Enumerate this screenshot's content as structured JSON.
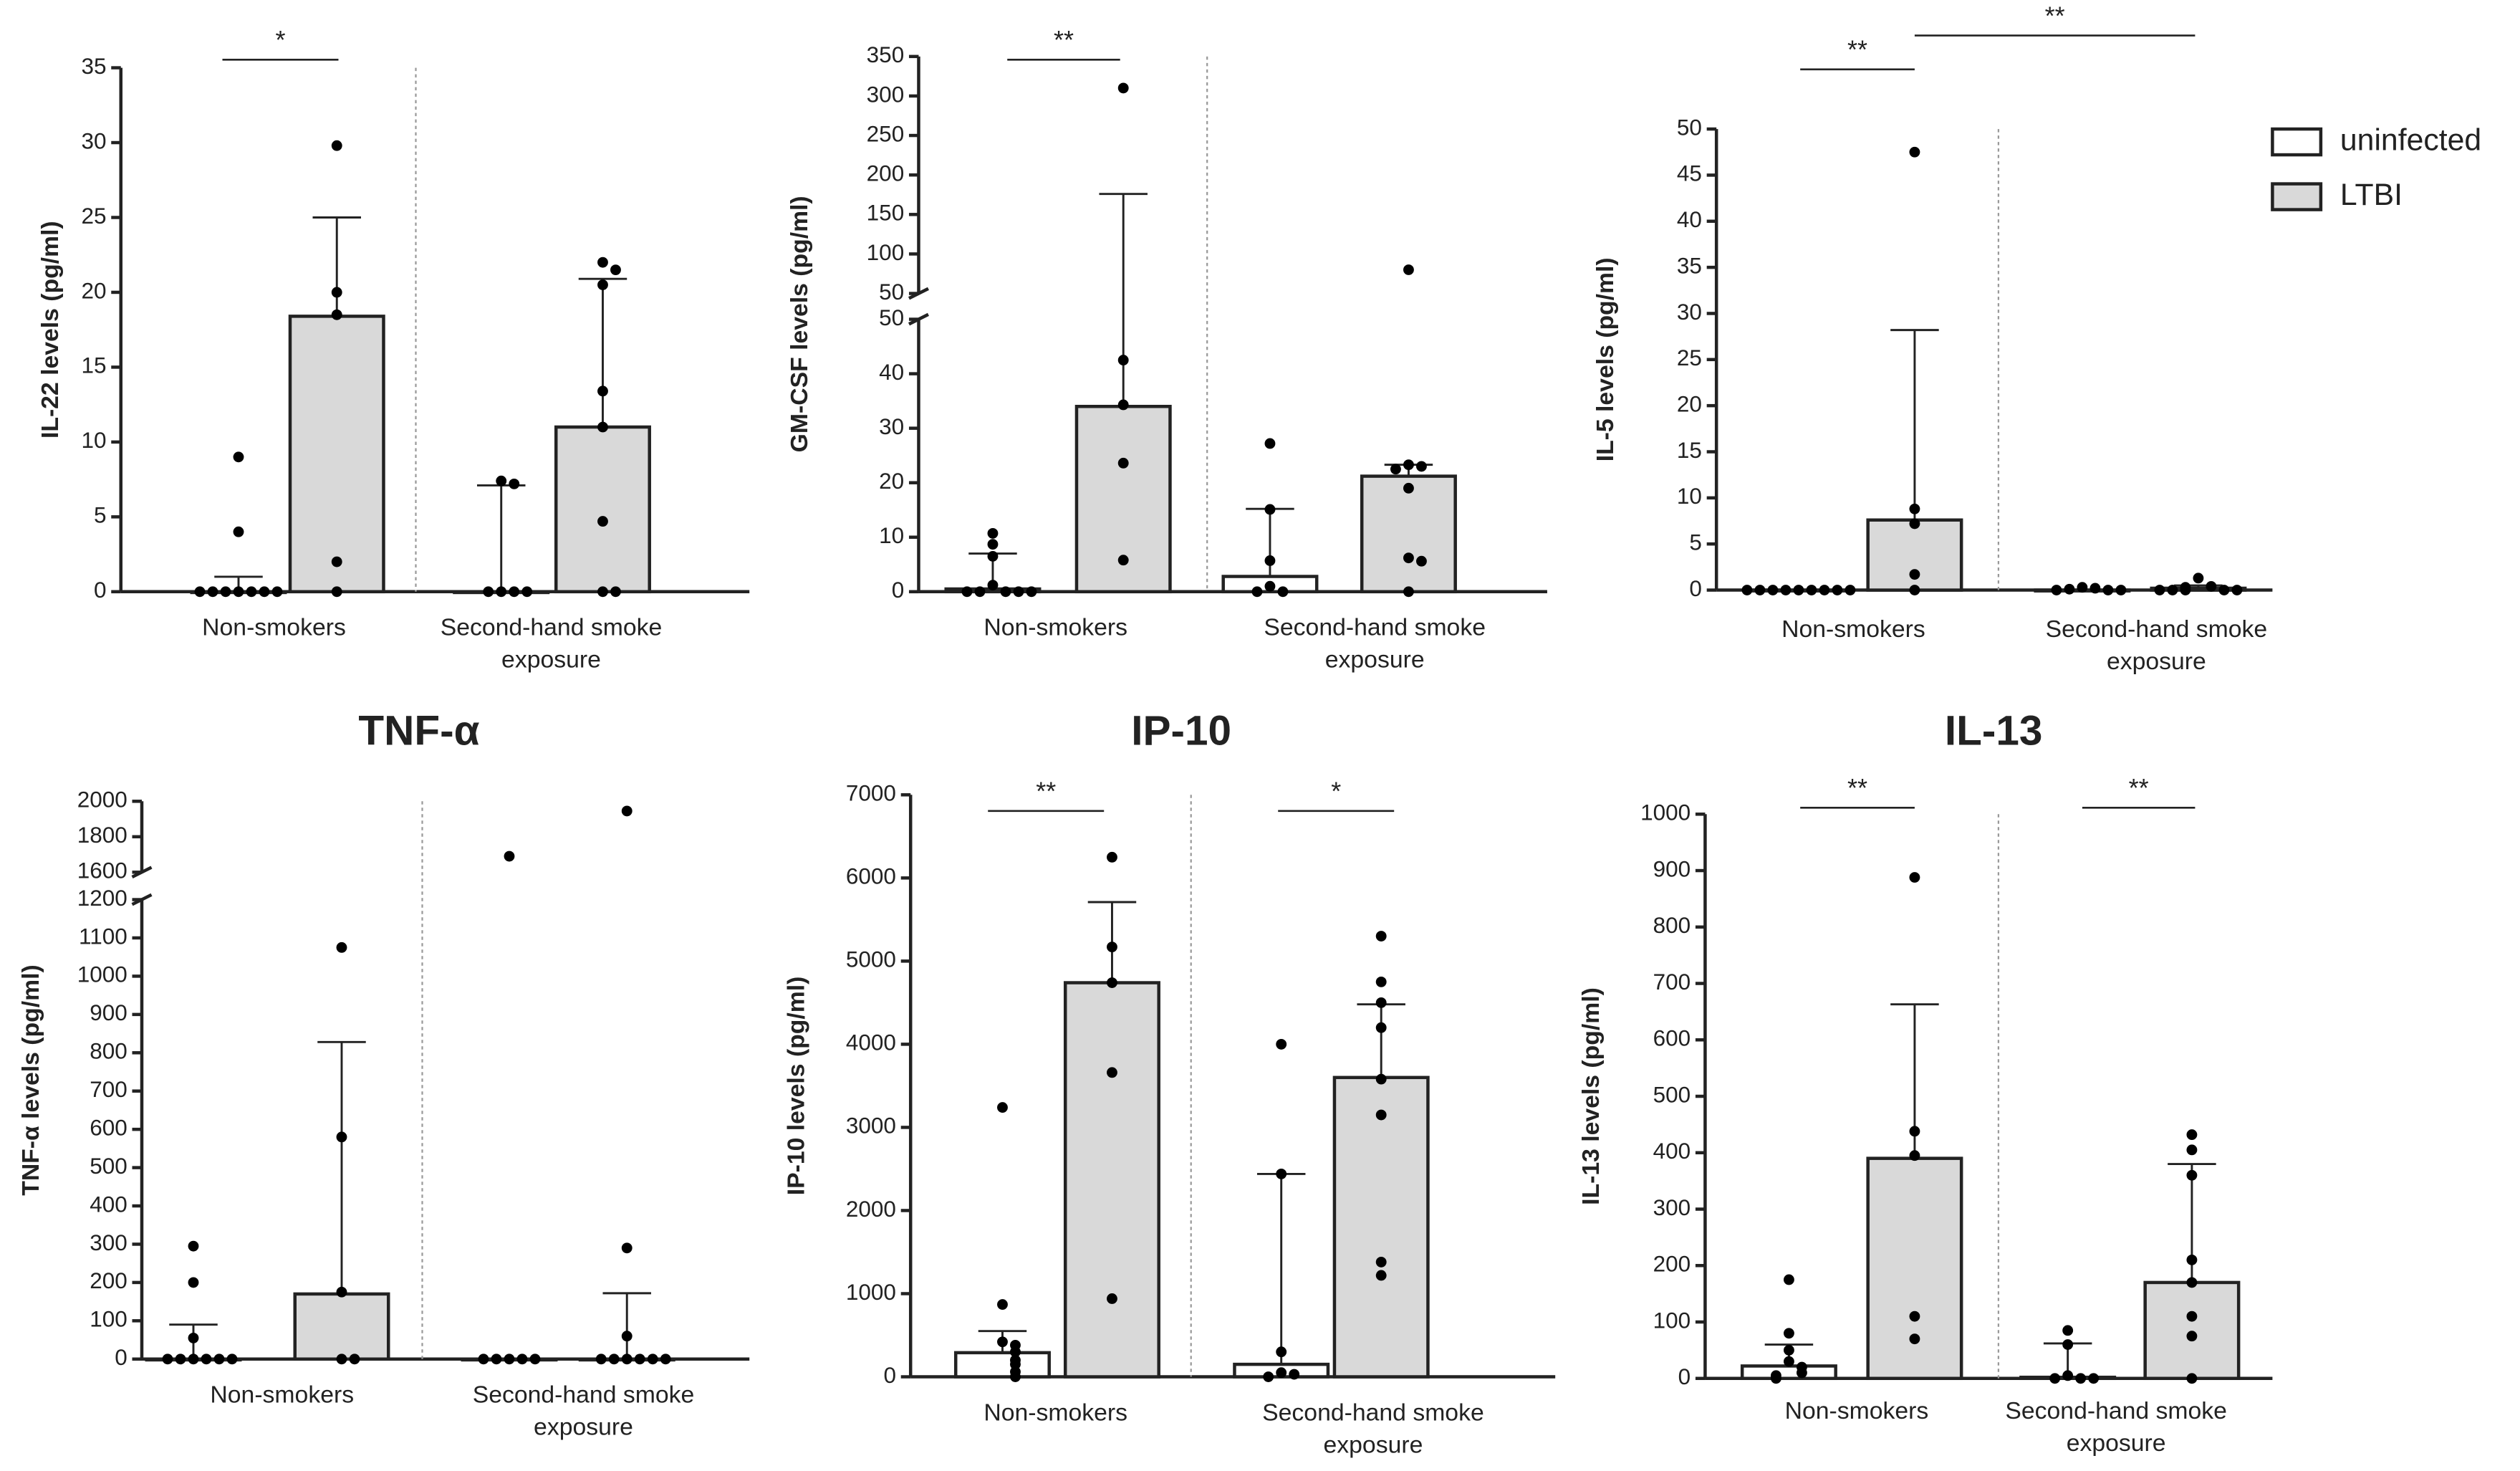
{
  "legend": [
    {
      "name": "uninfected",
      "color": "#ffffff"
    },
    {
      "name": "LTBI",
      "color": "#d9d9d9"
    }
  ],
  "chart_data": [
    {
      "type": "bar",
      "ylabel": "IL-22 levels (pg/ml)",
      "categories": [
        "Non-smokers",
        "Second-hand smoke exposure"
      ],
      "ylim": [
        0,
        35
      ],
      "yticks": [
        0,
        5,
        10,
        15,
        20,
        25,
        30,
        35
      ],
      "annotations": [
        "*"
      ],
      "series": [
        {
          "values": [
            0,
            0
          ],
          "errors": [
            1.0,
            7.1
          ],
          "points": [
            [
              9,
              4,
              0,
              0,
              0,
              0,
              0,
              0,
              0
            ],
            [
              7.4,
              7.2,
              0,
              0,
              0,
              0
            ]
          ]
        },
        {
          "values": [
            18.4,
            11
          ],
          "errors": [
            6.6,
            9.9
          ],
          "points": [
            [
              29.8,
              20,
              18.5,
              2,
              0
            ],
            [
              22,
              21.5,
              20.5,
              13.4,
              11,
              4.7,
              0,
              0
            ]
          ]
        }
      ]
    },
    {
      "type": "bar",
      "ylabel": "GM-CSF levels (pg/ml)",
      "categories": [
        "Non-smokers",
        "Second-hand smoke exposure"
      ],
      "ylim": [
        0,
        50
      ],
      "yticks": [
        0,
        10,
        20,
        30,
        40,
        50
      ],
      "ybreak": {
        "ylim": [
          50,
          350
        ],
        "yticks": [
          50,
          100,
          150,
          200,
          250,
          300,
          350
        ]
      },
      "annotations": [
        "**"
      ],
      "series": [
        {
          "values": [
            0.5,
            2.8
          ],
          "errors": [
            6.5,
            12.4
          ],
          "points": [
            [
              10.7,
              8.7,
              6.5,
              1.2,
              0,
              0,
              0,
              0,
              0
            ],
            [
              27.2,
              15.1,
              5.7,
              1,
              0,
              0
            ]
          ]
        },
        {
          "values": [
            34,
            21.2
          ],
          "errors": [
            142,
            2.1
          ],
          "points": [
            [
              310,
              42.5,
              34.3,
              23.6,
              5.8
            ],
            [
              80,
              23.3,
              23,
              22.5,
              19,
              6.2,
              5.6,
              0
            ]
          ]
        }
      ]
    },
    {
      "type": "bar",
      "ylabel": "IL-5 levels (pg/ml)",
      "categories": [
        "Non-smokers",
        "Second-hand smoke exposure"
      ],
      "ylim": [
        0,
        50
      ],
      "yticks": [
        0,
        5,
        10,
        15,
        20,
        25,
        30,
        35,
        40,
        45,
        50
      ],
      "annotations": [
        "**",
        "**"
      ],
      "legend": "upper right",
      "series": [
        {
          "values": [
            0,
            0
          ],
          "errors": [
            0,
            0
          ],
          "points": [
            [
              0,
              0,
              0,
              0,
              0,
              0,
              0,
              0,
              0
            ],
            [
              0.3,
              0.2,
              0.1,
              0,
              0,
              0
            ]
          ]
        },
        {
          "values": [
            7.6,
            0.2
          ],
          "errors": [
            20.6,
            0.3
          ],
          "points": [
            [
              47.5,
              8.8,
              7.2,
              1.7,
              0
            ],
            [
              1.3,
              0.4,
              0.3,
              0,
              0,
              0,
              0,
              0
            ]
          ]
        }
      ]
    },
    {
      "type": "bar",
      "title": "TNF-α",
      "ylabel": "TNF-α levels (pg/ml)",
      "categories": [
        "Non-smokers",
        "Second-hand smoke exposure"
      ],
      "ylim": [
        0,
        1200
      ],
      "yticks": [
        0,
        100,
        200,
        300,
        400,
        500,
        600,
        700,
        800,
        900,
        1000,
        1100,
        1200
      ],
      "ybreak": {
        "ylim": [
          1600,
          2000
        ],
        "yticks": [
          1600,
          1800,
          2000
        ]
      },
      "annotations": [],
      "series": [
        {
          "values": [
            0,
            0
          ],
          "errors": [
            90,
            0
          ],
          "points": [
            [
              295,
              200,
              55,
              0,
              0,
              0,
              0,
              0,
              0
            ],
            [
              1690,
              0,
              0,
              0,
              0,
              0
            ]
          ]
        },
        {
          "values": [
            170,
            0
          ],
          "errors": [
            658,
            172
          ],
          "points": [
            [
              1075,
              580,
              175,
              0,
              0
            ],
            [
              1945,
              290,
              60,
              0,
              0,
              0,
              0,
              0,
              0
            ]
          ]
        }
      ]
    },
    {
      "type": "bar",
      "title": "IP-10",
      "ylabel": "IP-10 levels (pg/ml)",
      "categories": [
        "Non-smokers",
        "Second-hand smoke exposure"
      ],
      "ylim": [
        0,
        7000
      ],
      "yticks": [
        0,
        1000,
        2000,
        3000,
        4000,
        5000,
        6000,
        7000
      ],
      "annotations": [
        "**",
        "*"
      ],
      "series": [
        {
          "values": [
            290,
            150
          ],
          "errors": [
            260,
            2290
          ],
          "points": [
            [
              3240,
              870,
              420,
              380,
              300,
              200,
              150,
              60,
              0
            ],
            [
              4000,
              2440,
              300,
              50,
              30,
              0
            ]
          ]
        },
        {
          "values": [
            4740,
            3600
          ],
          "errors": [
            970,
            880
          ],
          "points": [
            [
              6250,
              5170,
              4740,
              3660,
              940
            ],
            [
              5300,
              4750,
              4500,
              4200,
              3580,
              3150,
              1380,
              1220
            ]
          ]
        }
      ]
    },
    {
      "type": "bar",
      "title": "IL-13",
      "ylabel": "IL-13 levels (pg/ml)",
      "categories": [
        "Non-smokers",
        "Second-hand smoke exposure"
      ],
      "ylim": [
        0,
        1000
      ],
      "yticks": [
        0,
        100,
        200,
        300,
        400,
        500,
        600,
        700,
        800,
        900,
        1000
      ],
      "annotations": [
        "**",
        "**"
      ],
      "series": [
        {
          "values": [
            22,
            2
          ],
          "errors": [
            38,
            60
          ],
          "points": [
            [
              175,
              80,
              50,
              30,
              20,
              10,
              5,
              0
            ],
            [
              85,
              60,
              5,
              0,
              0,
              0
            ]
          ]
        },
        {
          "values": [
            390,
            170
          ],
          "errors": [
            273,
            210
          ],
          "points": [
            [
              888,
              438,
              395,
              110,
              70
            ],
            [
              432,
              405,
              360,
              210,
              170,
              110,
              75,
              0
            ]
          ]
        }
      ]
    }
  ]
}
